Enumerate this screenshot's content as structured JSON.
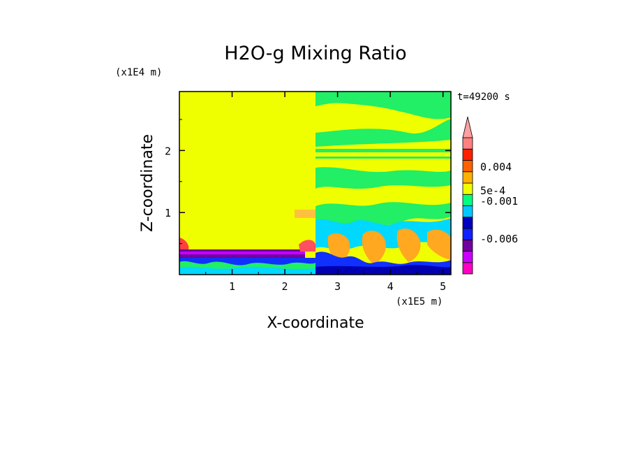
{
  "chart_data": {
    "type": "heatmap",
    "title": "H2O-g Mixing Ratio",
    "xlabel": "X-coordinate",
    "ylabel": "Z-coordinate",
    "x_unit": "(x1E5 m)",
    "y_unit": "(x1E4 m)",
    "time_label": "t=49200 s",
    "xlim": [
      0,
      5.15
    ],
    "ylim": [
      0,
      2.95
    ],
    "x_ticks": [
      "1",
      "2",
      "3",
      "4",
      "5"
    ],
    "y_ticks": [
      "1",
      "2"
    ],
    "colorbar": {
      "labels": [
        "0.004",
        "5e-4",
        "-0.001",
        "-0.006"
      ],
      "colors": [
        "#ff00c0",
        "#c800ff",
        "#7000a0",
        "#1020ff",
        "#0000c0",
        "#00c8ff",
        "#00ff80",
        "#f0ff00",
        "#ffb000",
        "#ff6000",
        "#ff2000",
        "#ff8080"
      ]
    },
    "regions": {
      "background": "#f0ff00",
      "left_block_top": 0.38,
      "right_turbulent_start": 2.6
    }
  }
}
